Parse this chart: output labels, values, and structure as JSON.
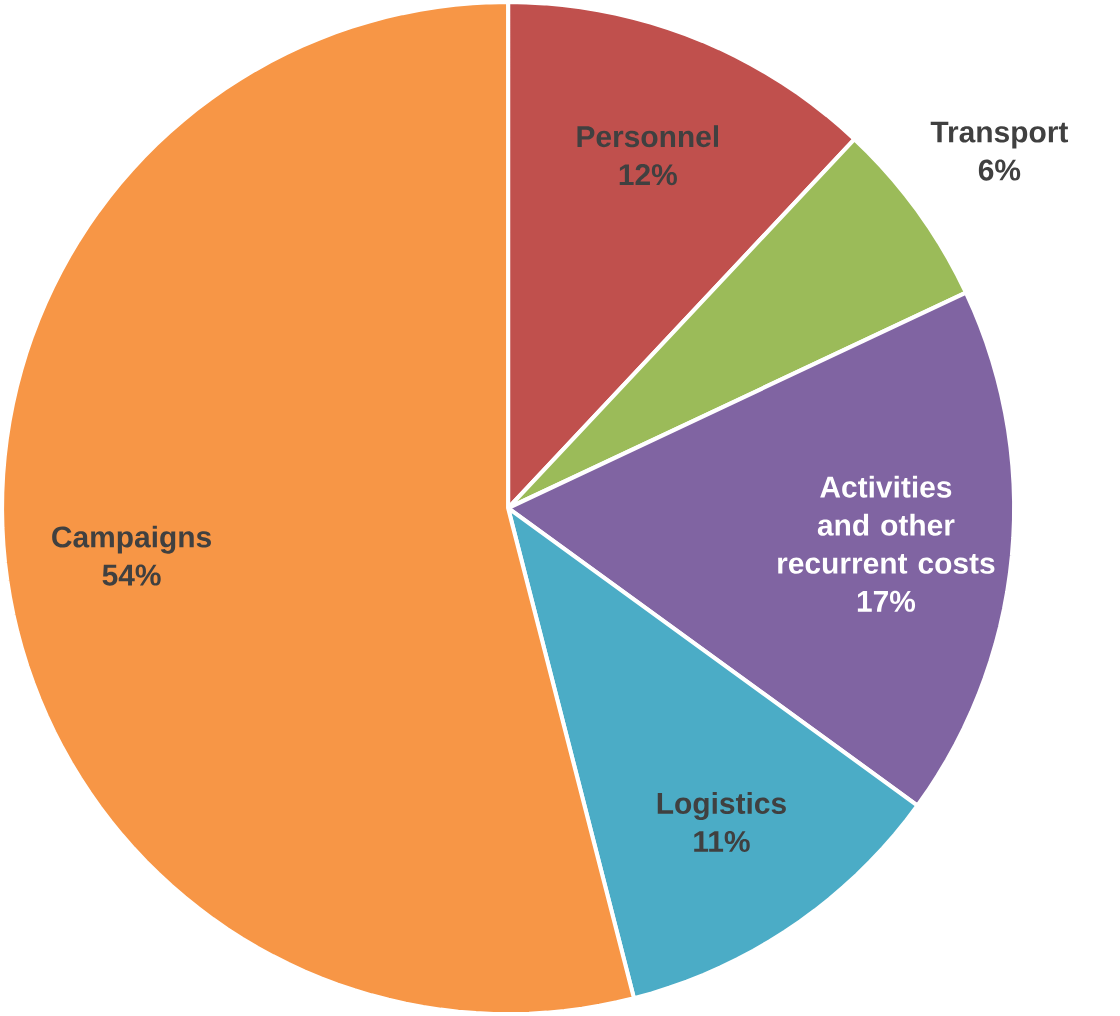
{
  "chart_data": {
    "type": "pie",
    "categories": [
      "Personnel",
      "Transport",
      "Activities and other recurrent costs",
      "Logistics",
      "Campaigns"
    ],
    "values": [
      12,
      6,
      17,
      11,
      54
    ],
    "value_labels": [
      "12%",
      "6%",
      "17%",
      "11%",
      "54%"
    ],
    "colors": [
      "#c0504d",
      "#9bbb59",
      "#8064a2",
      "#4bacc6",
      "#f79646"
    ]
  }
}
